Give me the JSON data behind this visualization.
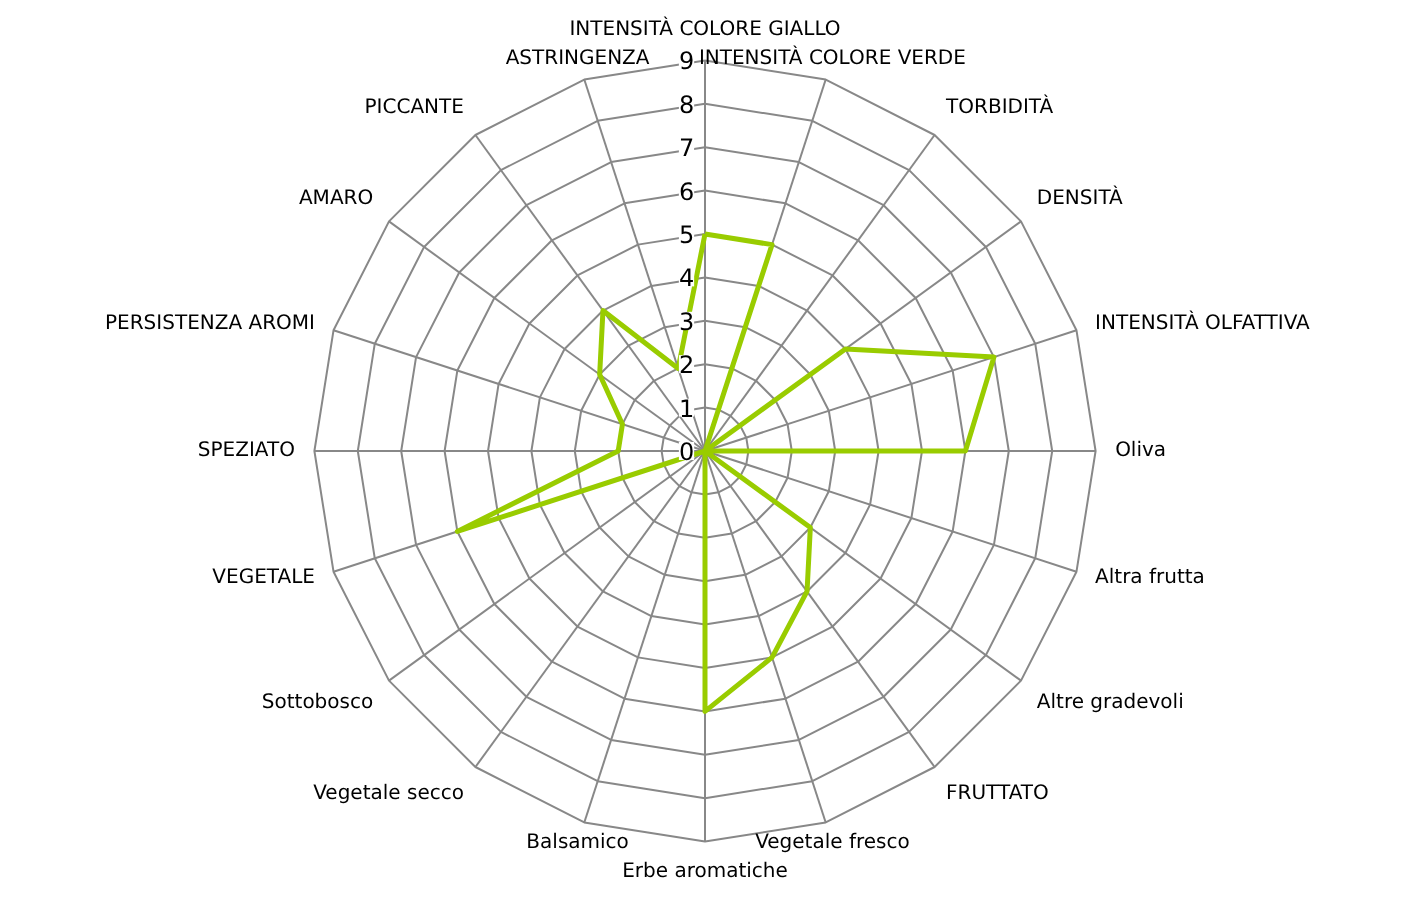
{
  "chart_data": {
    "type": "radar",
    "categories": [
      "INTENSITÀ COLORE GIALLO",
      "INTENSITÀ COLORE VERDE",
      "TORBIDITÀ",
      "DENSITÀ",
      "INTENSITÀ OLFATTIVA",
      "Oliva",
      "Altra frutta",
      "Altre gradevoli",
      "FRUTTATO",
      "Vegetale fresco",
      "Erbe aromatiche",
      "Balsamico",
      "Vegetale secco",
      "Sottobosco",
      "VEGETALE",
      "SPEZIATO",
      "PERSISTENZA AROMI",
      "AMARO",
      "PICCANTE",
      "ASTRINGENZA"
    ],
    "series": [
      {
        "color": "#99cc00",
        "values": [
          5,
          5,
          0,
          4,
          7,
          6,
          0,
          3,
          4,
          5,
          6,
          0,
          0,
          0,
          6,
          2,
          2,
          3,
          4,
          2
        ]
      }
    ],
    "ylim": [
      0,
      9
    ],
    "yticks": [
      0,
      1,
      2,
      3,
      4,
      5,
      6,
      7,
      8,
      9
    ],
    "grid": true
  }
}
